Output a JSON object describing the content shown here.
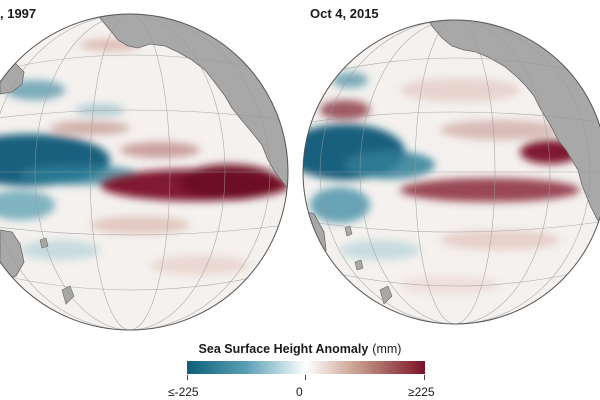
{
  "panels": [
    {
      "date": ", 1997"
    },
    {
      "date": "Oct 4, 2015"
    }
  ],
  "legend": {
    "title": "Sea Surface Height Anomaly",
    "unit": "(mm)",
    "ticks": [
      "≤-225",
      "0",
      "≥225"
    ],
    "colors": {
      "negative": "#0e5e7a",
      "neutral": "#ffffff",
      "positive": "#7a1228"
    }
  },
  "colors": {
    "land": "#a8a8a8",
    "land_edge": "#6a6a6a",
    "ocean_base": "#f4f1ee",
    "graticule": "#9a9a9a",
    "globe_edge": "#555555"
  }
}
